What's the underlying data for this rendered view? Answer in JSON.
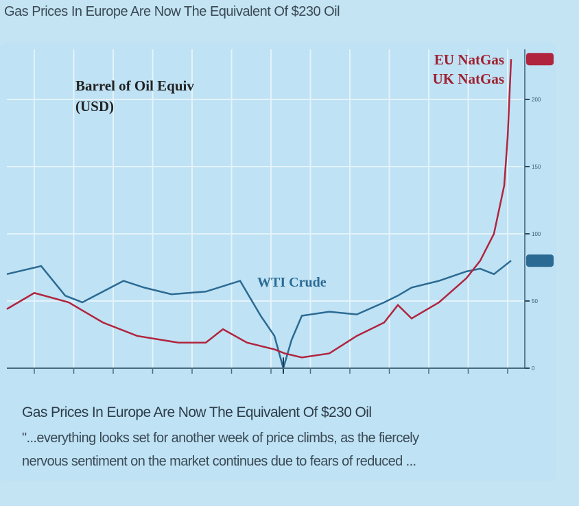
{
  "header": {
    "title": "Gas Prices In Europe Are Now The Equivalent Of $230 Oil"
  },
  "card": {
    "title": "Gas Prices In Europe Are Now The Equivalent Of $230 Oil",
    "excerpt_line1": "\"...everything looks set for another week of price climbs, as the fiercely",
    "excerpt_line2": "nervous sentiment on the market continues due to fears of reduced ..."
  },
  "chart_data": {
    "type": "line",
    "title": "Barrel of Oil Equiv",
    "subtitle": "(USD)",
    "ylim": [
      0,
      240
    ],
    "yticks": [
      0,
      50,
      100,
      150,
      200
    ],
    "grid": true,
    "legend": [
      "EU NatGas",
      "UK NatGas"
    ],
    "annotations": [
      "WTI Crude"
    ],
    "colors": {
      "wti": "#2b6a93",
      "natgas": "#b0243e"
    },
    "series": [
      {
        "name": "WTI Crude",
        "x": [
          0,
          50,
          85,
          110,
          170,
          200,
          240,
          290,
          340,
          370,
          390,
          403,
          415,
          430,
          470,
          510,
          550,
          570,
          590,
          630,
          670,
          690,
          710,
          735
        ],
        "values": [
          70,
          76,
          54,
          49,
          65,
          60,
          55,
          57,
          65,
          39,
          24,
          0,
          21,
          39,
          42,
          40,
          49,
          54,
          60,
          65,
          72,
          74,
          70,
          80
        ]
      },
      {
        "name": "EU NatGas / UK NatGas",
        "x": [
          0,
          40,
          90,
          140,
          190,
          250,
          290,
          315,
          350,
          390,
          405,
          430,
          470,
          510,
          550,
          570,
          590,
          630,
          670,
          690,
          710,
          725,
          730,
          735
        ],
        "values": [
          44,
          56,
          49,
          34,
          24,
          19,
          19,
          29,
          19,
          14,
          11,
          8,
          11,
          24,
          34,
          47,
          37,
          49,
          67,
          80,
          100,
          136,
          172,
          230
        ]
      }
    ]
  }
}
